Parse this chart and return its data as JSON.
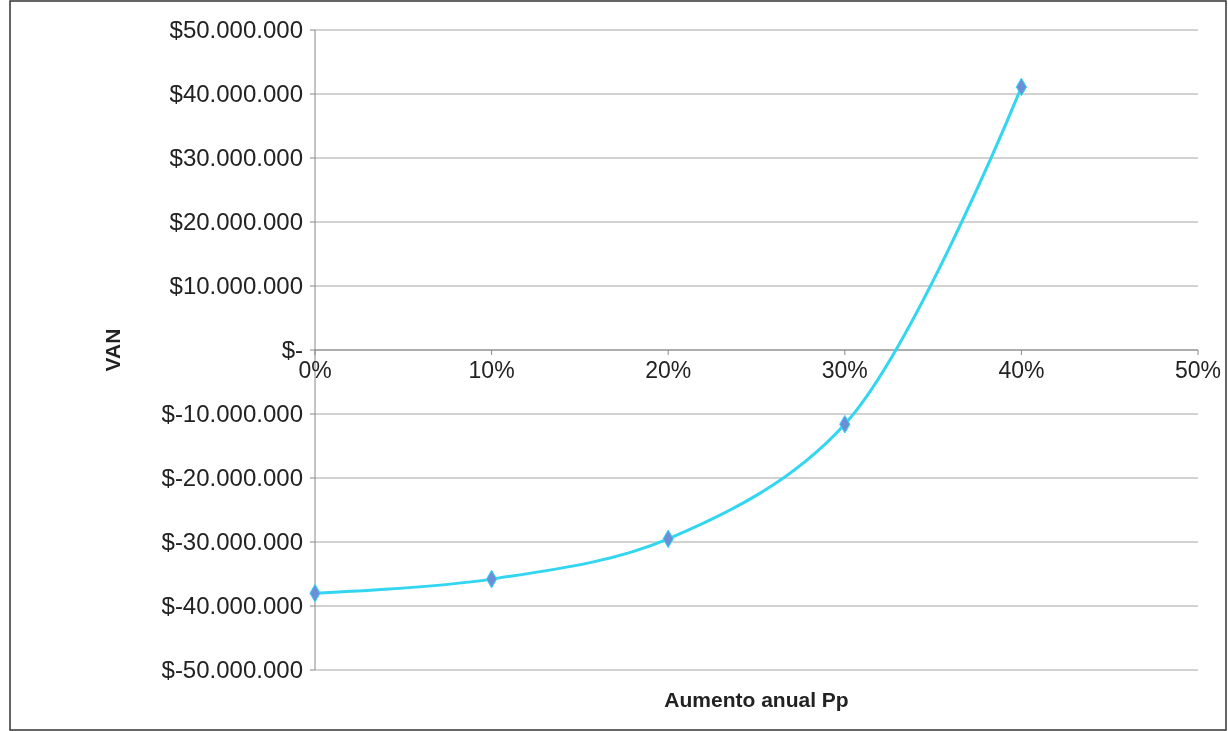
{
  "chart_data": {
    "type": "line",
    "xlabel": "Aumento anual Pp",
    "ylabel": "VAN",
    "x": [
      0,
      10,
      20,
      30,
      40
    ],
    "series": [
      {
        "color": "#33d6f0",
        "values": [
          -38000000,
          -35800000,
          -29500000,
          -11600000,
          41100000
        ]
      }
    ],
    "xlim": [
      0,
      50
    ],
    "xticks": [
      {
        "value": 0,
        "label": "0%"
      },
      {
        "value": 10,
        "label": "10%"
      },
      {
        "value": 20,
        "label": "20%"
      },
      {
        "value": 30,
        "label": "30%"
      },
      {
        "value": 40,
        "label": "40%"
      },
      {
        "value": 50,
        "label": "50%"
      }
    ],
    "ylim": [
      -50000000,
      50000000
    ],
    "yticks": [
      {
        "value": -50000000,
        "label": "$-50.000.000"
      },
      {
        "value": -40000000,
        "label": "$-40.000.000"
      },
      {
        "value": -30000000,
        "label": "$-30.000.000"
      },
      {
        "value": -20000000,
        "label": "$-20.000.000"
      },
      {
        "value": -10000000,
        "label": "$-10.000.000"
      },
      {
        "value": 0,
        "label": "$-"
      },
      {
        "value": 10000000,
        "label": "$10.000.000"
      },
      {
        "value": 20000000,
        "label": "$20.000.000"
      },
      {
        "value": 30000000,
        "label": "$30.000.000"
      },
      {
        "value": 40000000,
        "label": "$40.000.000"
      },
      {
        "value": 50000000,
        "label": "$50.000.000"
      }
    ],
    "grid": "y",
    "marker": "diamond",
    "line_style": "solid"
  }
}
